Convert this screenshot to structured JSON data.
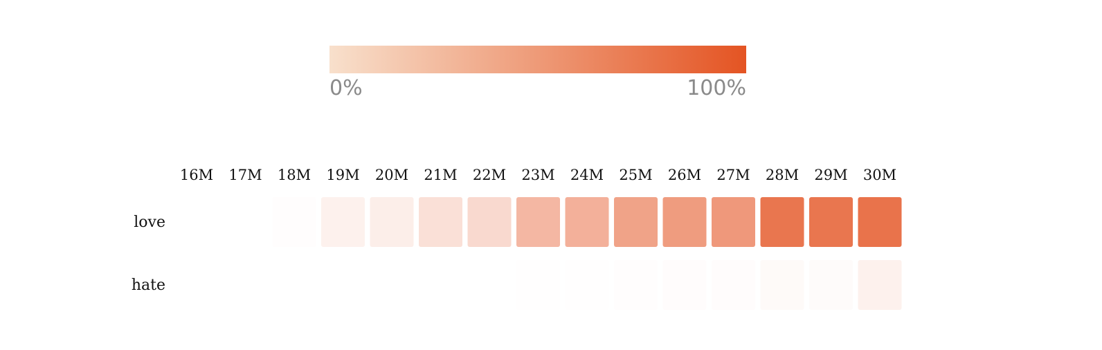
{
  "chart_data": {
    "type": "heatmap",
    "x": [
      "16M",
      "17M",
      "18M",
      "19M",
      "20M",
      "21M",
      "22M",
      "23M",
      "24M",
      "25M",
      "26M",
      "27M",
      "28M",
      "29M",
      "30M"
    ],
    "y": [
      "love",
      "hate"
    ],
    "values": [
      [
        0.0,
        0.0,
        0.01,
        0.08,
        0.1,
        0.18,
        0.22,
        0.42,
        0.46,
        0.54,
        0.58,
        0.6,
        0.8,
        0.8,
        0.82
      ],
      [
        0.0,
        0.0,
        0.0,
        0.0,
        0.0,
        0.0,
        0.0,
        0.005,
        0.005,
        0.01,
        0.015,
        0.015,
        0.03,
        0.025,
        0.08
      ]
    ],
    "value_range": [
      0,
      1
    ],
    "colorscale": {
      "min_color": "#f8e0cc",
      "max_color": "#e45423",
      "min_label": "0%",
      "max_label": "100%"
    },
    "legend_position": "top"
  }
}
